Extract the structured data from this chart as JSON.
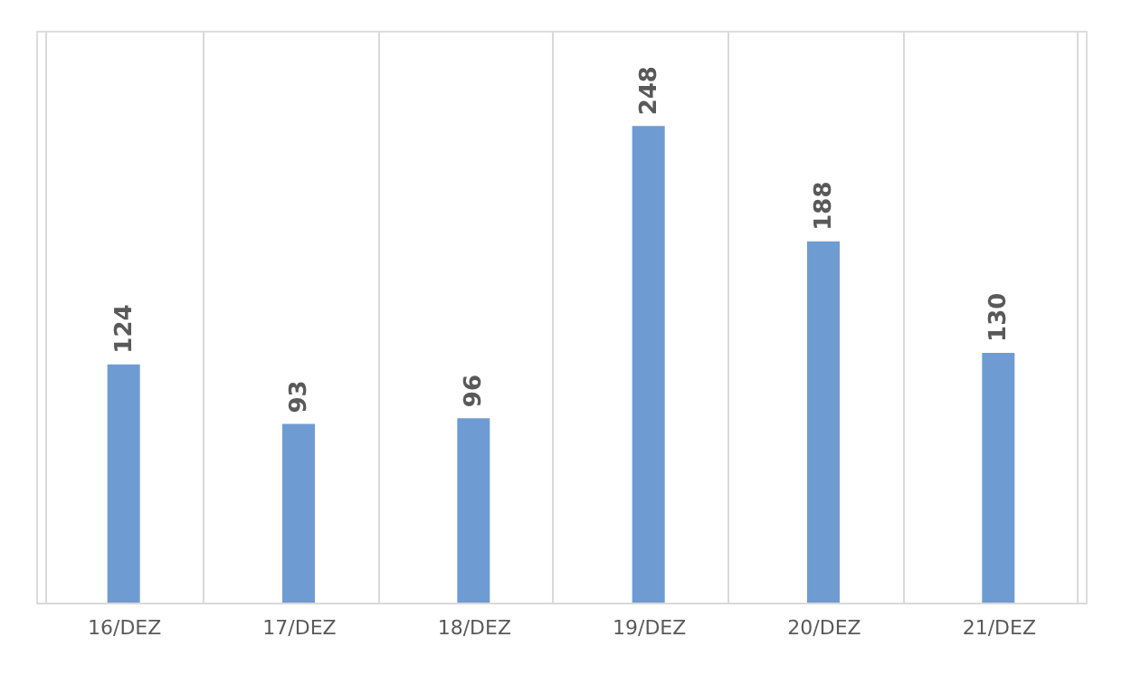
{
  "chart_data": {
    "type": "bar",
    "categories": [
      "16/DEZ",
      "17/DEZ",
      "18/DEZ",
      "19/DEZ",
      "20/DEZ",
      "21/DEZ"
    ],
    "values": [
      124,
      93,
      96,
      248,
      188,
      130
    ],
    "color": "#6f9bd3",
    "data_labels": true,
    "grid": "x"
  }
}
